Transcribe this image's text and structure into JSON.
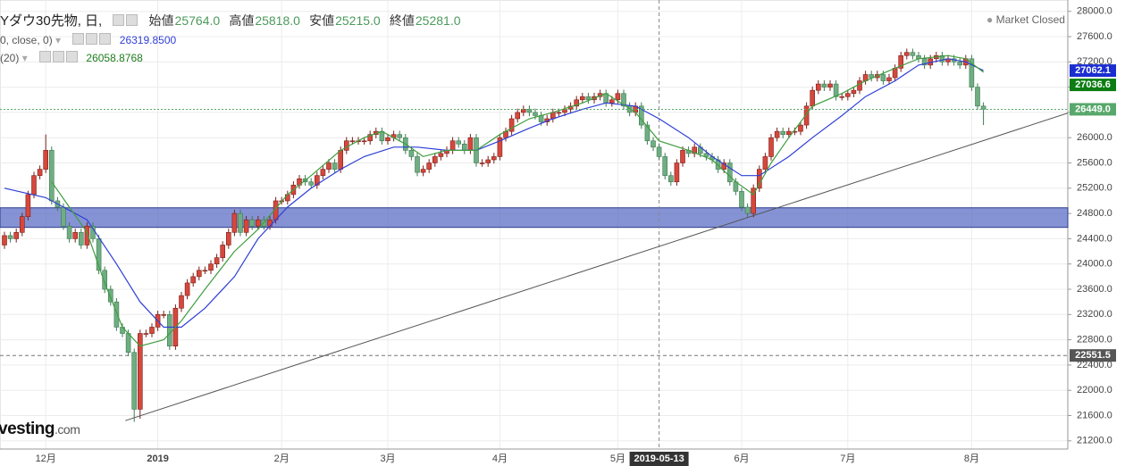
{
  "chart_data": {
    "type": "candlestick",
    "title": "Yダウ30先物, 日,",
    "ohlc_header": [
      {
        "label": "始値",
        "value": "25764.0"
      },
      {
        "label": "高値",
        "value": "25818.0"
      },
      {
        "label": "安値",
        "value": "25215.0"
      },
      {
        "label": "終値",
        "value": "25281.0"
      }
    ],
    "status": "Market Closed",
    "watermark": [
      "vesting",
      ".com"
    ],
    "categories": [
      null,
      null,
      null,
      null,
      null,
      null,
      null,
      "12月",
      null,
      null,
      null,
      null,
      null,
      null,
      null,
      null,
      null,
      null,
      null,
      null,
      null,
      null,
      null,
      null,
      null,
      null,
      "2019",
      null,
      null,
      null,
      null,
      null,
      null,
      null,
      null,
      null,
      null,
      null,
      null,
      null,
      null,
      null,
      null,
      null,
      null,
      null,
      null,
      "2月",
      null,
      null,
      null,
      null,
      null,
      null,
      null,
      null,
      null,
      null,
      null,
      null,
      null,
      null,
      null,
      null,
      null,
      "3月",
      null,
      null,
      null,
      null,
      null,
      null,
      null,
      null,
      null,
      null,
      null,
      null,
      null,
      null,
      null,
      null,
      null,
      null,
      "4月",
      null,
      null,
      null,
      null,
      null,
      null,
      null,
      null,
      null,
      null,
      null,
      null,
      null,
      null,
      null,
      null,
      null,
      null,
      null,
      "5月",
      null,
      null,
      null,
      null,
      null,
      null,
      "2019-05-13",
      null,
      null,
      null,
      null,
      null,
      null,
      null,
      null,
      null,
      null,
      null,
      null,
      null,
      "6月",
      null,
      null,
      null,
      null,
      null,
      null,
      null,
      null,
      null,
      null,
      null,
      null,
      null,
      null,
      null,
      null,
      null,
      "7月",
      null,
      null,
      null,
      null,
      null,
      null,
      null,
      null,
      null,
      null,
      null,
      null,
      null,
      null,
      null,
      null,
      null,
      null,
      null,
      null,
      "8月",
      null,
      null
    ],
    "open": [
      24300,
      24450,
      24400,
      24500,
      24750,
      25100,
      25400,
      25500,
      25800,
      25000,
      24900,
      24600,
      24400,
      24500,
      24300,
      24600,
      24400,
      23900,
      23600,
      23400,
      23000,
      22900,
      22600,
      21700,
      22900,
      22900,
      23000,
      23200,
      23200,
      22700,
      23300,
      23500,
      23700,
      23800,
      23900,
      23900,
      24000,
      24100,
      24300,
      24500,
      24800,
      24500,
      24700,
      24600,
      24700,
      24600,
      24700,
      25000,
      25000,
      25100,
      25250,
      25350,
      25300,
      25250,
      25400,
      25500,
      25600,
      25500,
      25800,
      25950,
      25950,
      25950,
      25950,
      26050,
      26100,
      25950,
      26000,
      26050,
      26000,
      25800,
      25700,
      25450,
      25500,
      25600,
      25700,
      25750,
      25800,
      25950,
      25900,
      25800,
      26000,
      25600,
      25600,
      25650,
      25700,
      26000,
      26100,
      26300,
      26400,
      26450,
      26400,
      26350,
      26250,
      26300,
      26400,
      26400,
      26450,
      26500,
      26600,
      26650,
      26600,
      26650,
      26700,
      26550,
      26600,
      26700,
      26500,
      26400,
      26500,
      26200,
      25950,
      25850,
      25700,
      25400,
      25300,
      25600,
      25800,
      25750,
      25850,
      25750,
      25700,
      25650,
      25500,
      25600,
      25300,
      25150,
      24900,
      24800,
      25200,
      25500,
      25700,
      26000,
      26100,
      26050,
      26100,
      26100,
      26200,
      26500,
      26750,
      26850,
      26800,
      26850,
      26650,
      26650,
      26700,
      26750,
      26900,
      27000,
      26950,
      27000,
      26900,
      26950,
      27100,
      27300,
      27350,
      27300,
      27250,
      27150,
      27250,
      27300,
      27200,
      27250,
      27200,
      27150,
      27250,
      26800,
      26500
    ],
    "high": [
      24510,
      24510,
      24560,
      24810,
      25160,
      25460,
      25560,
      26050,
      25860,
      25060,
      24960,
      24660,
      24560,
      24560,
      24660,
      24660,
      24460,
      23960,
      23660,
      23460,
      23060,
      22960,
      22660,
      22960,
      22960,
      23060,
      23260,
      23260,
      23260,
      23360,
      23560,
      23760,
      23860,
      23960,
      23960,
      24060,
      24160,
      24360,
      24560,
      24860,
      24860,
      24760,
      24760,
      24760,
      24760,
      24760,
      25060,
      25060,
      25160,
      25310,
      25410,
      25410,
      25360,
      25460,
      25560,
      25660,
      25660,
      25860,
      26010,
      26010,
      26010,
      26010,
      26110,
      26160,
      26160,
      26060,
      26110,
      26110,
      26060,
      25860,
      25760,
      25560,
      25660,
      25760,
      25810,
      25860,
      26010,
      26010,
      25960,
      26060,
      26060,
      25660,
      25710,
      25760,
      26060,
      26160,
      26360,
      26460,
      26510,
      26510,
      26460,
      26410,
      26360,
      26460,
      26460,
      26510,
      26560,
      26660,
      26710,
      26710,
      26710,
      26760,
      26760,
      26660,
      26760,
      26760,
      26560,
      26560,
      26560,
      26260,
      26010,
      25910,
      25760,
      25460,
      25660,
      25860,
      25860,
      25910,
      25910,
      25810,
      25760,
      25710,
      25660,
      25660,
      25360,
      25210,
      24960,
      25260,
      25560,
      25760,
      26060,
      26160,
      26160,
      26160,
      26160,
      26260,
      26560,
      26810,
      26910,
      26910,
      26910,
      26910,
      26710,
      26760,
      26810,
      26960,
      27060,
      27060,
      27060,
      27060,
      27010,
      27160,
      27360,
      27410,
      27410,
      27360,
      27310,
      27310,
      27360,
      27360,
      27310,
      27310,
      27260,
      27310,
      27310,
      26860,
      26560
    ],
    "low": [
      24240,
      24340,
      24340,
      24440,
      24690,
      25040,
      25340,
      25440,
      24940,
      24840,
      24540,
      24340,
      24340,
      24240,
      24240,
      24340,
      23840,
      23540,
      23340,
      22940,
      22840,
      22540,
      21500,
      21550,
      22840,
      22840,
      22940,
      23140,
      22640,
      22640,
      23240,
      23440,
      23640,
      23740,
      23840,
      23840,
      23940,
      24040,
      24240,
      24440,
      24440,
      24440,
      24540,
      24540,
      24540,
      24540,
      24640,
      24940,
      24940,
      25040,
      25190,
      25240,
      25190,
      25190,
      25340,
      25440,
      25440,
      25440,
      25740,
      25890,
      25890,
      25890,
      25890,
      25990,
      25890,
      25890,
      25940,
      25940,
      25740,
      25640,
      25390,
      25390,
      25440,
      25540,
      25640,
      25690,
      25740,
      25840,
      25740,
      25740,
      25540,
      25540,
      25540,
      25590,
      25640,
      25940,
      26040,
      26240,
      26340,
      26340,
      26290,
      26190,
      26190,
      26240,
      26340,
      26340,
      26390,
      26440,
      26540,
      26540,
      26540,
      26590,
      26490,
      26490,
      26540,
      26440,
      26340,
      26340,
      26140,
      25890,
      25790,
      25640,
      25340,
      25240,
      25240,
      25540,
      25690,
      25690,
      25690,
      25640,
      25590,
      25440,
      25440,
      25240,
      25090,
      24840,
      24740,
      24740,
      25140,
      25440,
      25640,
      25940,
      25990,
      25990,
      26040,
      26040,
      26140,
      26440,
      26690,
      26740,
      26740,
      26590,
      26590,
      26590,
      26640,
      26690,
      26840,
      26890,
      26890,
      26840,
      26840,
      26890,
      27040,
      27240,
      27240,
      27190,
      27090,
      27090,
      27190,
      27140,
      27140,
      27140,
      27090,
      27090,
      26740,
      26440,
      26200
    ],
    "close": [
      24450,
      24400,
      24500,
      24750,
      25100,
      25400,
      25500,
      25800,
      25000,
      24900,
      24600,
      24400,
      24500,
      24300,
      24600,
      24400,
      23900,
      23600,
      23400,
      23000,
      22900,
      22600,
      21700,
      22900,
      22900,
      23000,
      23200,
      23200,
      22700,
      23300,
      23500,
      23700,
      23800,
      23900,
      23900,
      24000,
      24100,
      24300,
      24500,
      24800,
      24500,
      24700,
      24600,
      24700,
      24600,
      24700,
      25000,
      25000,
      25100,
      25250,
      25350,
      25300,
      25250,
      25400,
      25500,
      25600,
      25500,
      25800,
      25950,
      25950,
      25950,
      25950,
      26050,
      26100,
      25950,
      26000,
      26050,
      26000,
      25800,
      25700,
      25450,
      25500,
      25600,
      25700,
      25750,
      25800,
      25950,
      25900,
      25800,
      26000,
      25600,
      25600,
      25650,
      25700,
      26000,
      26100,
      26300,
      26400,
      26450,
      26400,
      26350,
      26250,
      26300,
      26400,
      26400,
      26450,
      26500,
      26600,
      26650,
      26600,
      26650,
      26700,
      26550,
      26600,
      26700,
      26500,
      26400,
      26500,
      26200,
      25950,
      25850,
      25700,
      25400,
      25300,
      25600,
      25800,
      25750,
      25850,
      25750,
      25700,
      25650,
      25500,
      25600,
      25300,
      25150,
      24900,
      24800,
      25200,
      25500,
      25700,
      26000,
      26100,
      26050,
      26100,
      26100,
      26200,
      26500,
      26750,
      26850,
      26800,
      26850,
      26650,
      26650,
      26700,
      26750,
      26900,
      27000,
      26950,
      27000,
      26900,
      26950,
      27100,
      27300,
      27350,
      27300,
      27250,
      27150,
      27250,
      27300,
      27200,
      27250,
      27200,
      27150,
      27250,
      26800,
      26500,
      26449
    ],
    "up_color": "#d6473c",
    "down_color": "#6fae82",
    "series": [
      {
        "name": "0, close, 0)",
        "legend_value": "26319.8500",
        "color": "#2f3fd6",
        "tag_color": "#1a2ed0",
        "x": [
          0,
          7,
          14,
          19,
          23,
          27,
          30,
          34,
          39,
          43,
          48,
          52,
          57,
          61,
          66,
          70,
          75,
          80,
          84,
          89,
          93,
          98,
          102,
          107,
          111,
          116,
          120,
          125,
          128,
          133,
          137,
          142,
          146,
          151,
          155,
          160,
          163,
          166
        ],
        "values": [
          25200,
          25050,
          24700,
          24000,
          23400,
          23000,
          23000,
          23300,
          23800,
          24400,
          24900,
          25200,
          25500,
          25700,
          25850,
          25850,
          25800,
          25800,
          25950,
          26150,
          26300,
          26450,
          26550,
          26500,
          26300,
          26000,
          25700,
          25400,
          25400,
          25700,
          26000,
          26350,
          26650,
          26900,
          27150,
          27250,
          27200,
          27062.1
        ]
      },
      {
        "name": "(20)",
        "legend_value": "26058.8768",
        "color": "#3f9e3f",
        "tag_color": "#0c7d12",
        "x": [
          8,
          11,
          14,
          17,
          20,
          23,
          27,
          30,
          34,
          39,
          43,
          48,
          52,
          57,
          61,
          64,
          68,
          71,
          75,
          80,
          84,
          89,
          93,
          98,
          102,
          107,
          111,
          116,
          120,
          124,
          127,
          130,
          133,
          137,
          142,
          146,
          151,
          155,
          160,
          163,
          166
        ],
        "values": [
          25300,
          24900,
          24500,
          23700,
          23000,
          22700,
          22800,
          23100,
          23600,
          24200,
          24550,
          25100,
          25400,
          25800,
          26000,
          26100,
          25900,
          25700,
          25800,
          25800,
          26050,
          26300,
          26400,
          26550,
          26700,
          26400,
          25950,
          25800,
          25650,
          25300,
          25100,
          25600,
          26000,
          26500,
          26700,
          26900,
          27100,
          27250,
          27300,
          27250,
          27036.6
        ]
      }
    ],
    "last_price": {
      "value": 26449,
      "label": "26449.0"
    },
    "last_price_color": "#58a86c",
    "crosshair": {
      "x": "2019-05-13",
      "y": 22551.5
    },
    "zone": [
      24580,
      24890
    ],
    "zone_color": "#5c6fc7",
    "trendline": {
      "x": [
        20.5,
        180.3
      ],
      "y": [
        21520,
        26390
      ]
    },
    "ylim": [
      21070,
      28180
    ],
    "yticks": [
      {
        "value": 21200,
        "label": "21200.0"
      },
      {
        "value": 21600,
        "label": "21600.0"
      },
      {
        "value": 22000,
        "label": "22000.0"
      },
      {
        "value": 22400,
        "label": "22400.0"
      },
      {
        "value": 22800,
        "label": "22800.0"
      },
      {
        "value": 23200,
        "label": "23200.0"
      },
      {
        "value": 23600,
        "label": "23600.0"
      },
      {
        "value": 24000,
        "label": "24000.0"
      },
      {
        "value": 24400,
        "label": "24400.0"
      },
      {
        "value": 24800,
        "label": "24800.0"
      },
      {
        "value": 25200,
        "label": "25200.0"
      },
      {
        "value": 25600,
        "label": "25600.0"
      },
      {
        "value": 26000,
        "label": "26000.0"
      },
      {
        "value": 26400,
        "label": "26400.0"
      },
      {
        "value": 26800,
        "label": "26800.0"
      },
      {
        "value": 27200,
        "label": "27200.0"
      },
      {
        "value": 27600,
        "label": "27600.0"
      },
      {
        "value": 28000,
        "label": "28000.0"
      }
    ],
    "grid": true
  }
}
